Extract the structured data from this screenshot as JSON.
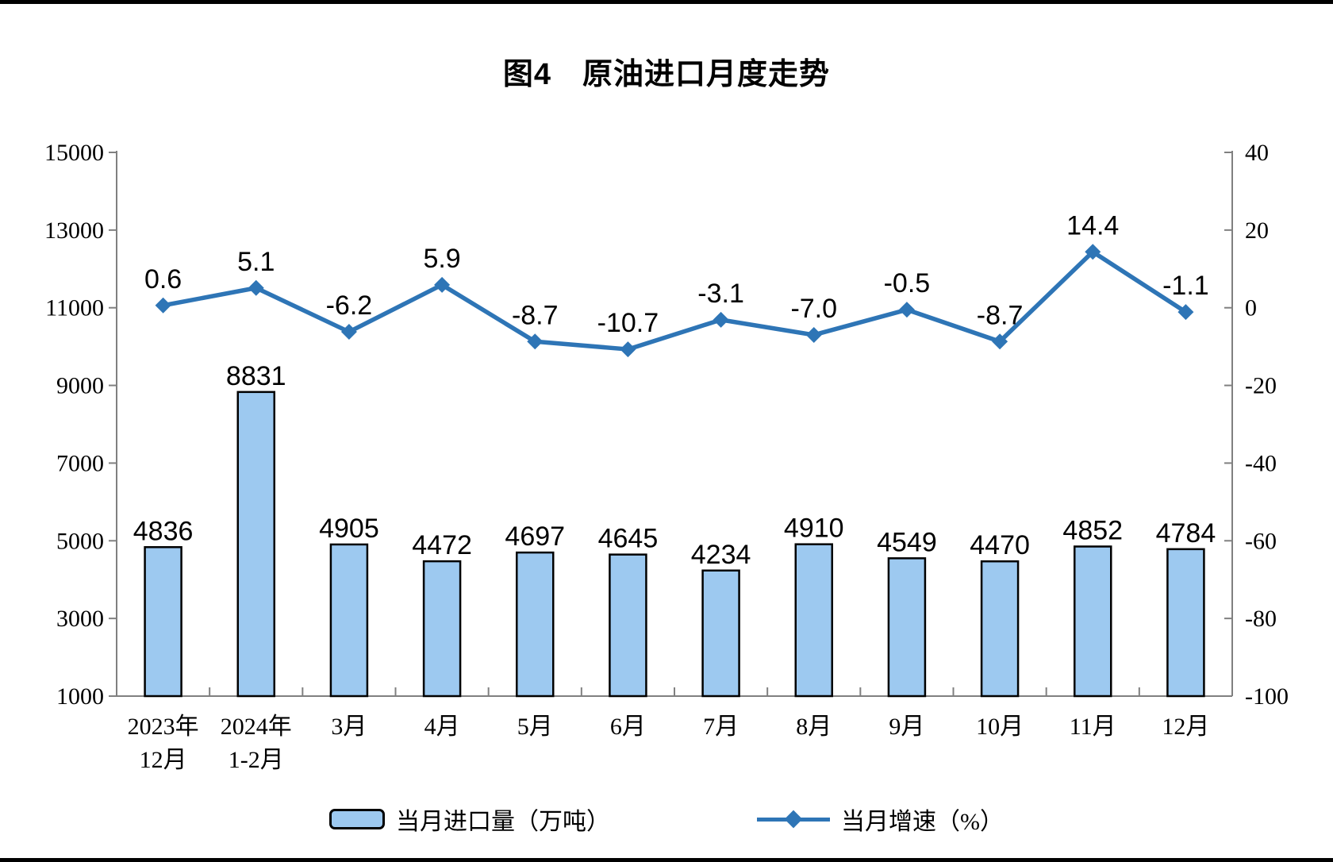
{
  "chart_data": {
    "type": "bar+line",
    "title": "图4　原油进口月度走势",
    "categories": [
      "2023年\n12月",
      "2024年\n1-2月",
      "3月",
      "4月",
      "5月",
      "6月",
      "7月",
      "8月",
      "9月",
      "10月",
      "11月",
      "12月"
    ],
    "series": [
      {
        "name": "当月进口量（万吨）",
        "type": "bar",
        "axis": "left",
        "values": [
          4836,
          8831,
          4905,
          4472,
          4697,
          4645,
          4234,
          4910,
          4549,
          4470,
          4852,
          4784
        ],
        "labels": [
          "4836",
          "8831",
          "4905",
          "4472",
          "4697",
          "4645",
          "4234",
          "4910",
          "4549",
          "4470",
          "4852",
          "4784"
        ]
      },
      {
        "name": "当月增速（%）",
        "type": "line",
        "axis": "right",
        "marker": "diamond",
        "values": [
          0.6,
          5.1,
          -6.2,
          5.9,
          -8.7,
          -10.7,
          -3.1,
          -7.0,
          -0.5,
          -8.7,
          14.4,
          -1.1
        ],
        "labels": [
          "0.6",
          "5.1",
          "-6.2",
          "5.9",
          "-8.7",
          "-10.7",
          "-3.1",
          "-7.0",
          "-0.5",
          "-8.7",
          "14.4",
          "-1.1"
        ]
      }
    ],
    "left_axis": {
      "min": 1000,
      "max": 15000,
      "step": 2000,
      "tick_labels": [
        "15000",
        "13000",
        "11000",
        "9000",
        "7000",
        "5000",
        "3000",
        "1000"
      ]
    },
    "right_axis": {
      "min": -100,
      "max": 40,
      "step": 20,
      "tick_labels": [
        "40",
        "20",
        "0",
        "-20",
        "-40",
        "-60",
        "-80",
        "-100"
      ]
    },
    "grid": false,
    "legend_position": "bottom",
    "colors": {
      "bar_fill": "#9DC9F0",
      "bar_stroke": "#000000",
      "line": "#2E75B6",
      "axis": "#808080",
      "text": "#000000",
      "page_border": "#000000"
    }
  }
}
